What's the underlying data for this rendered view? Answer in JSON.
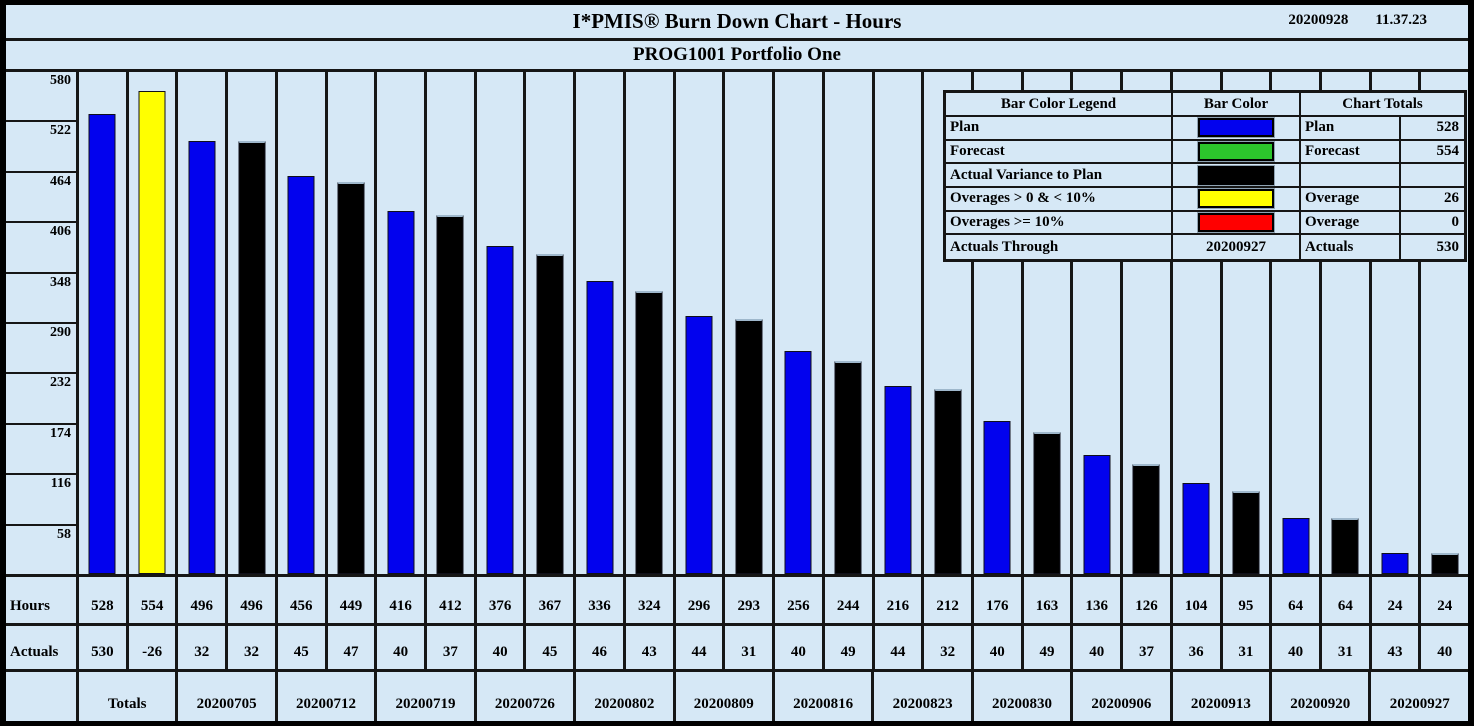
{
  "header": {
    "title": "I*PMIS® Burn Down Chart - Hours",
    "date": "20200928",
    "time": "11.37.23",
    "subtitle": "PROG1001 Portfolio One"
  },
  "colors": {
    "background": "#d6e8f6",
    "grid": "#161616",
    "plan": "#0202ee",
    "forecast": "#2cc52c",
    "actual_variance": "#000000",
    "overage_low": "#ffff00",
    "overage_high": "#ff0000"
  },
  "legend": {
    "col_headers": [
      "Bar Color Legend",
      "Bar Color",
      "Chart Totals"
    ],
    "rows": [
      {
        "label": "Plan",
        "swatch_color": "#0202ee",
        "total_label": "Plan",
        "total_value": "528"
      },
      {
        "label": "Forecast",
        "swatch_color": "#2cc52c",
        "total_label": "Forecast",
        "total_value": "554"
      },
      {
        "label": "Actual Variance to Plan",
        "swatch_color": "#000000",
        "total_label": "",
        "total_value": ""
      },
      {
        "label": "Overages > 0 & < 10%",
        "swatch_color": "#ffff00",
        "total_label": "Overage",
        "total_value": "26"
      },
      {
        "label": "Overages >= 10%",
        "swatch_color": "#ff0000",
        "total_label": "Overage",
        "total_value": "0"
      },
      {
        "label": "Actuals Through",
        "swatch_text": "20200927",
        "total_label": "Actuals",
        "total_value": "530"
      }
    ]
  },
  "chart_data": {
    "type": "bar",
    "title": "I*PMIS® Burn Down Chart - Hours",
    "subtitle": "PROG1001 Portfolio One",
    "ylim": [
      0,
      580
    ],
    "y_ticks": [
      580,
      522,
      464,
      406,
      348,
      290,
      232,
      174,
      116,
      58
    ],
    "grid": "vertical-column-separators-only",
    "legend_position": "top-right-overlay",
    "groups": [
      "Totals",
      "20200705",
      "20200712",
      "20200719",
      "20200726",
      "20200802",
      "20200809",
      "20200816",
      "20200823",
      "20200830",
      "20200906",
      "20200913",
      "20200920",
      "20200927"
    ],
    "series": [
      {
        "name": "Hours",
        "values": [
          528,
          554,
          496,
          496,
          456,
          449,
          416,
          412,
          376,
          367,
          336,
          324,
          296,
          293,
          256,
          244,
          216,
          212,
          176,
          163,
          136,
          126,
          104,
          95,
          64,
          64,
          24,
          24
        ]
      },
      {
        "name": "Actuals",
        "values": [
          530,
          -26,
          32,
          32,
          45,
          47,
          40,
          37,
          40,
          45,
          46,
          43,
          44,
          31,
          40,
          49,
          44,
          32,
          40,
          49,
          40,
          37,
          36,
          31,
          40,
          31,
          43,
          40
        ]
      }
    ],
    "bars": [
      {
        "value": 528,
        "color": "#0202ee",
        "kind": "plan"
      },
      {
        "value": 554,
        "color": "#ffff00",
        "kind": "overage_low"
      },
      {
        "value": 496,
        "color": "#0202ee",
        "kind": "plan"
      },
      {
        "value": 496,
        "color": "#000000",
        "kind": "actual_variance"
      },
      {
        "value": 456,
        "color": "#0202ee",
        "kind": "plan"
      },
      {
        "value": 449,
        "color": "#000000",
        "kind": "actual_variance"
      },
      {
        "value": 416,
        "color": "#0202ee",
        "kind": "plan"
      },
      {
        "value": 412,
        "color": "#000000",
        "kind": "actual_variance"
      },
      {
        "value": 376,
        "color": "#0202ee",
        "kind": "plan"
      },
      {
        "value": 367,
        "color": "#000000",
        "kind": "actual_variance"
      },
      {
        "value": 336,
        "color": "#0202ee",
        "kind": "plan"
      },
      {
        "value": 324,
        "color": "#000000",
        "kind": "actual_variance"
      },
      {
        "value": 296,
        "color": "#0202ee",
        "kind": "plan"
      },
      {
        "value": 293,
        "color": "#000000",
        "kind": "actual_variance"
      },
      {
        "value": 256,
        "color": "#0202ee",
        "kind": "plan"
      },
      {
        "value": 244,
        "color": "#000000",
        "kind": "actual_variance"
      },
      {
        "value": 216,
        "color": "#0202ee",
        "kind": "plan"
      },
      {
        "value": 212,
        "color": "#000000",
        "kind": "actual_variance"
      },
      {
        "value": 176,
        "color": "#0202ee",
        "kind": "plan"
      },
      {
        "value": 163,
        "color": "#000000",
        "kind": "actual_variance"
      },
      {
        "value": 136,
        "color": "#0202ee",
        "kind": "plan"
      },
      {
        "value": 126,
        "color": "#000000",
        "kind": "actual_variance"
      },
      {
        "value": 104,
        "color": "#0202ee",
        "kind": "plan"
      },
      {
        "value": 95,
        "color": "#000000",
        "kind": "actual_variance"
      },
      {
        "value": 64,
        "color": "#0202ee",
        "kind": "plan"
      },
      {
        "value": 64,
        "color": "#000000",
        "kind": "actual_variance"
      },
      {
        "value": 24,
        "color": "#0202ee",
        "kind": "plan"
      },
      {
        "value": 24,
        "color": "#000000",
        "kind": "actual_variance"
      }
    ]
  }
}
